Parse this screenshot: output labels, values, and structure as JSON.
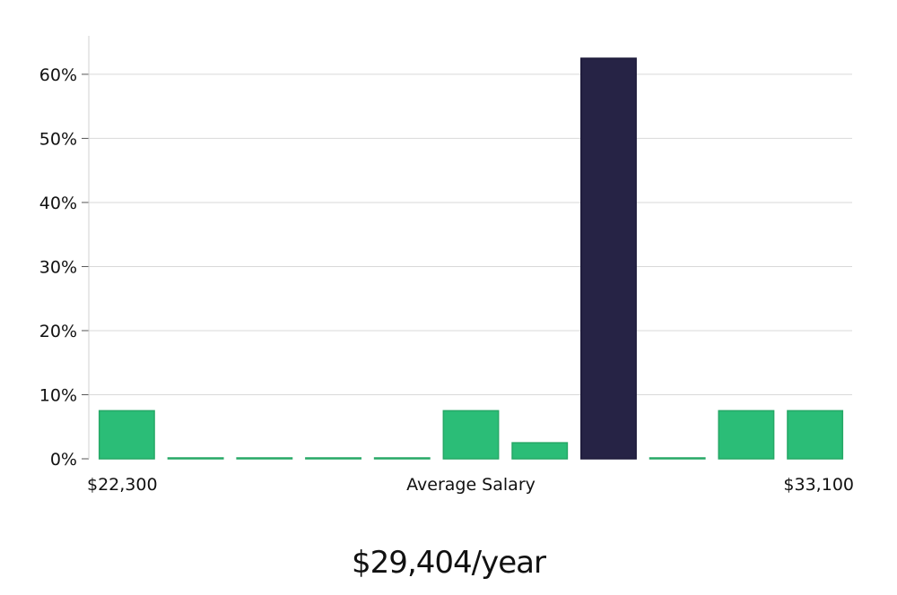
{
  "headline": "$29,404/year",
  "colors": {
    "bar": "#2bbd77",
    "bar_border": "#26a866",
    "highlight": "#262345",
    "highlight_border": "#1d1a3a",
    "grid": "#d9d9d9",
    "axis": "#d0d0d0"
  },
  "chart_data": {
    "type": "bar",
    "x_labels": {
      "left": "$22,300",
      "center": "Average Salary",
      "right": "$33,100"
    },
    "bins": 11,
    "values": [
      7.5,
      0.1,
      0.1,
      0.1,
      0.1,
      7.5,
      2.5,
      62.5,
      0.1,
      7.5,
      7.5
    ],
    "highlight_index": 7,
    "ylim": [
      0,
      66
    ],
    "y_ticks": [
      0,
      10,
      20,
      30,
      40,
      50,
      60
    ],
    "y_tick_labels": [
      "0%",
      "10%",
      "20%",
      "30%",
      "40%",
      "50%",
      "60%"
    ],
    "grid": true
  }
}
